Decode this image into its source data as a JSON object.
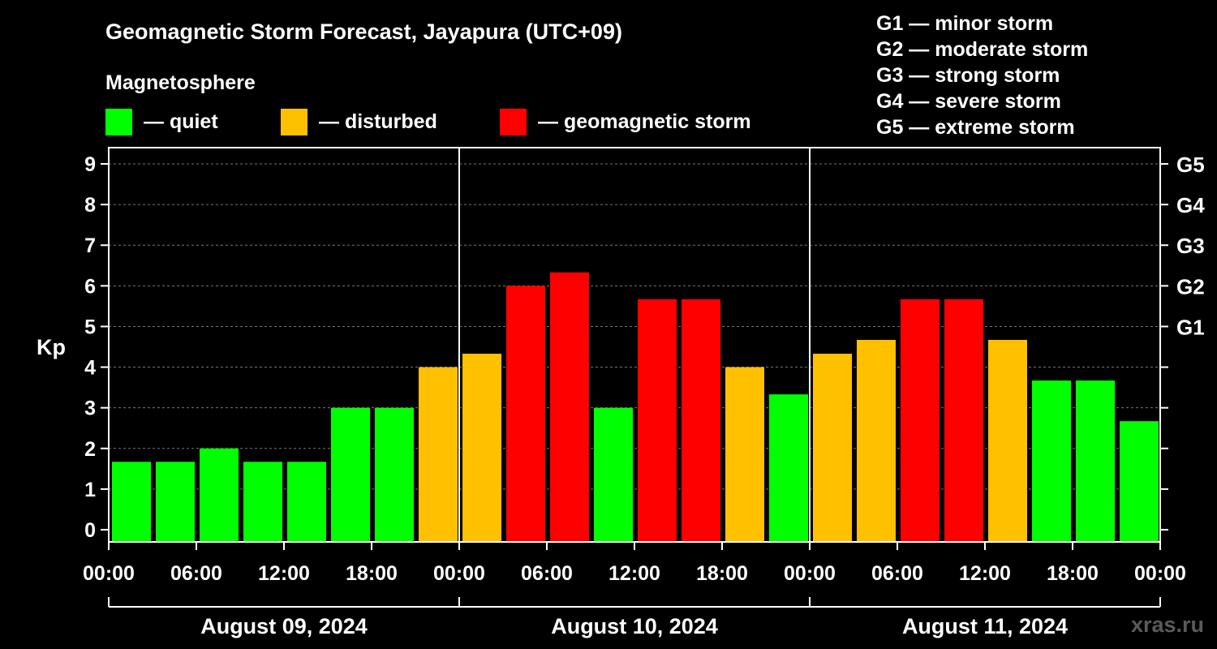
{
  "title": "Geomagnetic Storm Forecast, Jayapura (UTC+09)",
  "legend": {
    "heading": "Magnetosphere",
    "items": [
      {
        "label": "— quiet",
        "color": "#00ff00"
      },
      {
        "label": "— disturbed",
        "color": "#ffc000"
      },
      {
        "label": "— geomagnetic storm",
        "color": "#ff0000"
      }
    ]
  },
  "g_scale": [
    "G1 — minor storm",
    "G2 — moderate storm",
    "G3 — strong storm",
    "G4 — severe storm",
    "G5 — extreme storm"
  ],
  "watermark": "xras.ru",
  "chart_data": {
    "type": "bar",
    "ylabel": "Kp",
    "ylim": [
      -0.3,
      9.4
    ],
    "yticks": [
      "0",
      "1",
      "2",
      "3",
      "4",
      "5",
      "6",
      "7",
      "8",
      "9"
    ],
    "right_ticks": [
      {
        "label": "G1",
        "kp": 5
      },
      {
        "label": "G2",
        "kp": 6
      },
      {
        "label": "G3",
        "kp": 7
      },
      {
        "label": "G4",
        "kp": 8
      },
      {
        "label": "G5",
        "kp": 9
      }
    ],
    "xtick_labels": [
      "00:00",
      "06:00",
      "12:00",
      "18:00",
      "00:00",
      "06:00",
      "12:00",
      "18:00",
      "00:00",
      "06:00",
      "12:00",
      "18:00",
      "00:00"
    ],
    "days": [
      "August 09, 2024",
      "August 10, 2024",
      "August 11, 2024"
    ],
    "interval_hours": 3,
    "values": [
      1.67,
      1.67,
      2.0,
      1.67,
      1.67,
      3.0,
      3.0,
      4.0,
      4.33,
      6.0,
      6.33,
      3.0,
      5.67,
      5.67,
      4.0,
      3.33,
      4.33,
      4.67,
      5.67,
      5.67,
      4.67,
      3.67,
      3.67,
      2.67
    ],
    "thresholds": {
      "quiet_below": 4,
      "storm_from": 5
    },
    "colors": {
      "quiet": "#00ff00",
      "disturbed": "#ffc000",
      "storm": "#ff0000"
    }
  }
}
